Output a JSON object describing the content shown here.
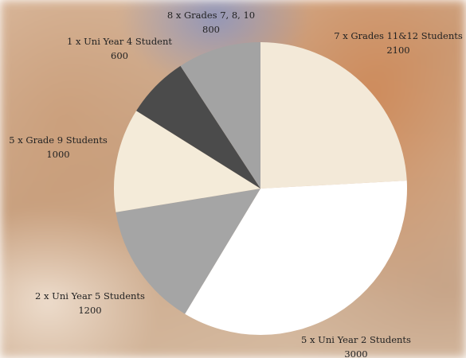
{
  "chart_data": {
    "type": "pie",
    "categories": [
      "7 x Grades 11&12 Students",
      "5 x Uni Year 2 Students",
      "2 x Uni Year 5 Students",
      "5 x Grade 9 Students",
      "1 x Uni Year 4 Student",
      "8 x Grades 7, 8, 10"
    ],
    "values": [
      2100,
      3000,
      1200,
      1000,
      600,
      800
    ],
    "colors": [
      "#f3e9d8",
      "#ffffff",
      "#a5a5a5",
      "#f4ebd9",
      "#4b4b4b",
      "#a3a3a3"
    ]
  }
}
